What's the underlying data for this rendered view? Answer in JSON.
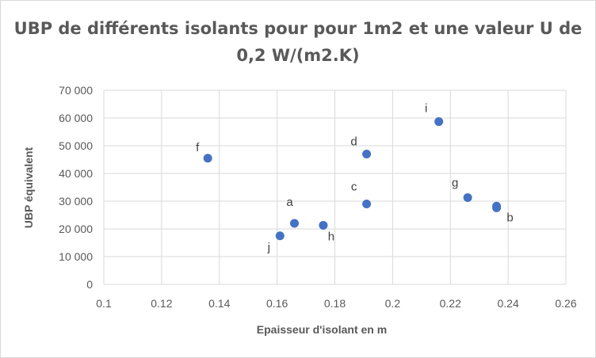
{
  "chart_data": {
    "type": "scatter",
    "title": "UBP de différents isolants pour pour 1m2 et une valeur U de 0,2 W/(m2.K)",
    "xlabel": "Epaisseur d'isolant en m",
    "ylabel": "UBP équivalent",
    "xlim": [
      0.1,
      0.26
    ],
    "ylim": [
      0,
      70000
    ],
    "x_ticks": [
      "0.1",
      "0.12",
      "0.14",
      "0.16",
      "0.18",
      "0.2",
      "0.22",
      "0.24",
      "0.26"
    ],
    "y_ticks": [
      "0",
      "10 000",
      "20 000",
      "30 000",
      "40 000",
      "50 000",
      "60 000",
      "70 000"
    ],
    "grid": true,
    "legend": "none",
    "marker_color": "#4472c4",
    "points": [
      {
        "label": "a",
        "x": 0.166,
        "y": 22000
      },
      {
        "label": "b",
        "x": 0.236,
        "y": 27600
      },
      {
        "label": "",
        "x": 0.236,
        "y": 28200
      },
      {
        "label": "c",
        "x": 0.191,
        "y": 29000
      },
      {
        "label": "d",
        "x": 0.191,
        "y": 47000
      },
      {
        "label": "f",
        "x": 0.136,
        "y": 45500
      },
      {
        "label": "g",
        "x": 0.226,
        "y": 31300
      },
      {
        "label": "h",
        "x": 0.176,
        "y": 21300
      },
      {
        "label": "i",
        "x": 0.216,
        "y": 58700
      },
      {
        "label": "j",
        "x": 0.161,
        "y": 17500
      }
    ]
  }
}
